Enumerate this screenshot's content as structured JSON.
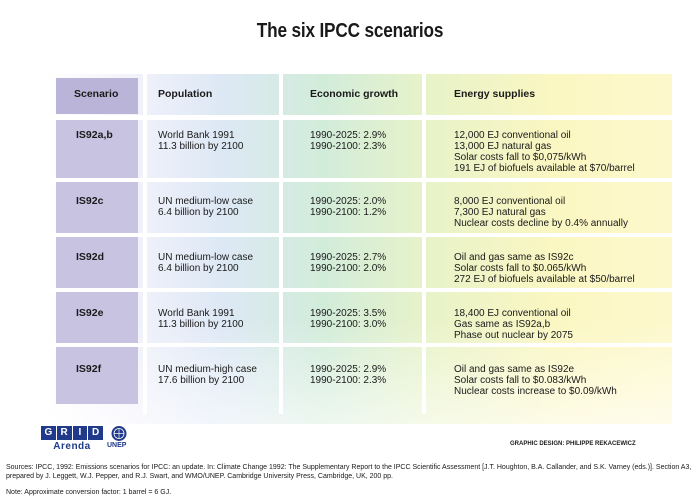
{
  "title": "The six IPCC scenarios",
  "headers": {
    "scenario": "Scenario",
    "population": "Population",
    "growth": "Economic growth",
    "energy": "Energy supplies"
  },
  "rows": [
    {
      "scenario": "IS92a,b",
      "population": [
        "World Bank 1991",
        "11.3 billion by 2100"
      ],
      "growth": [
        "1990-2025: 2.9%",
        "1990-2100: 2.3%"
      ],
      "energy": [
        "12,000 EJ conventional oil",
        "13,000 EJ natural gas",
        "Solar costs fall to $0,075/kWh",
        "191 EJ of biofuels available at $70/barrel"
      ]
    },
    {
      "scenario": "IS92c",
      "population": [
        "UN medium-low case",
        "6.4 billion by 2100"
      ],
      "growth": [
        "1990-2025: 2.0%",
        "1990-2100: 1.2%"
      ],
      "energy": [
        "8,000 EJ conventional oil",
        "7,300 EJ natural gas",
        "Nuclear costs decline by 0.4% annually"
      ]
    },
    {
      "scenario": "IS92d",
      "population": [
        "UN medium-low case",
        "6.4 billion by 2100"
      ],
      "growth": [
        "1990-2025: 2.7%",
        "1990-2100: 2.0%"
      ],
      "energy": [
        "Oil and gas same as IS92c",
        "Solar costs fall to $0.065/kWh",
        "272 EJ of biofuels available at $50/barrel"
      ]
    },
    {
      "scenario": "IS92e",
      "population": [
        "World Bank 1991",
        "11.3 billion by 2100"
      ],
      "growth": [
        "1990-2025: 3.5%",
        "1990-2100: 3.0%"
      ],
      "energy": [
        "18,400 EJ conventional oil",
        "Gas same as IS92a,b",
        "Phase out nuclear by 2075"
      ]
    },
    {
      "scenario": "IS92f",
      "population": [
        "UN medium-high case",
        "17.6 billion by 2100"
      ],
      "growth": [
        "1990-2025: 2.9%",
        "1990-2100: 2.3%"
      ],
      "energy": [
        "Oil and gas same as IS92e",
        "Solar costs fall to $0.083/kWh",
        "Nuclear costs increase to $0.09/kWh"
      ]
    }
  ],
  "logos": {
    "grid_letters": [
      "G",
      "R",
      "I",
      "D"
    ],
    "arenda": "Arenda",
    "unep": "UNEP"
  },
  "credit": "GRAPHIC DESIGN: PHILIPPE REKACEWICZ",
  "sources": "Sources: IPCC, 1992: Emissions scenarios for IPCC: an update. In: Climate Change 1992: The Supplementary Report to the IPCC Scientific Assessment [J.T. Houghton, B.A. Callander, and S.K. Varney (eds.)]. Section A3, prepared by J. Leggett, W.J. Pepper, and R.J. Swart, and WMO/UNEP. Cambridge University Press, Cambridge, UK, 200 pp.",
  "note": "Note: Approximate conversion factor: 1 barrel = 6 GJ."
}
